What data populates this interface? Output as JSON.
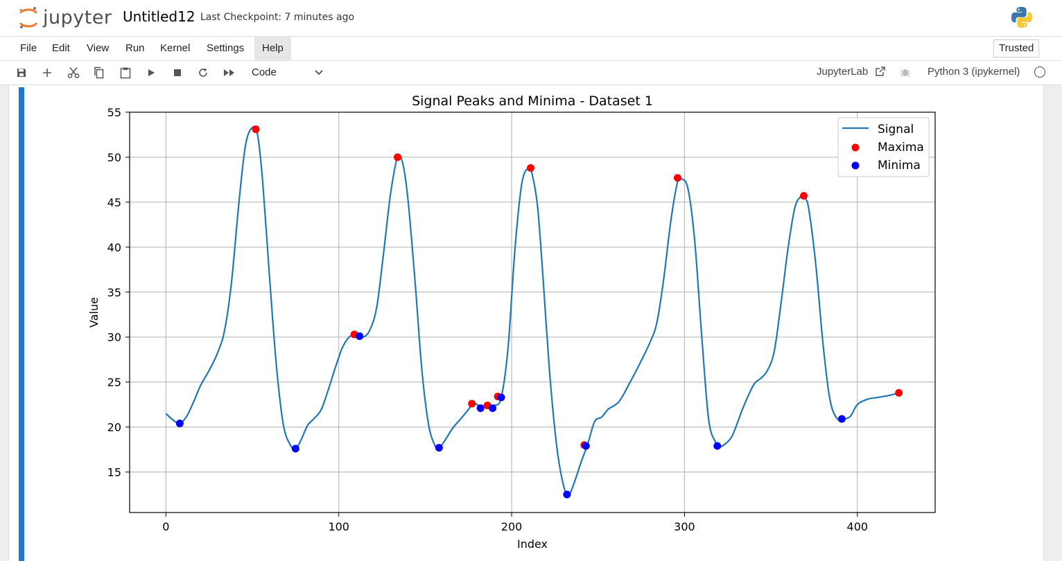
{
  "header": {
    "logo_text": "jupyter",
    "notebook_title": "Untitled12",
    "checkpoint": "Last Checkpoint: 7 minutes ago"
  },
  "menu": {
    "items": [
      "File",
      "Edit",
      "View",
      "Run",
      "Kernel",
      "Settings",
      "Help"
    ],
    "trusted": "Trusted"
  },
  "toolbar": {
    "cell_type": "Code",
    "jupyterlab_link": "JupyterLab",
    "kernel_name": "Python 3 (ipykernel)",
    "icons": [
      "save-icon",
      "add-icon",
      "cut-icon",
      "copy-icon",
      "paste-icon",
      "run-icon",
      "stop-icon",
      "restart-icon",
      "fast-forward-icon"
    ]
  },
  "colors": {
    "cell_bar": "#1e77d3",
    "signal": "#1f77b4",
    "maxima": "#ff0000",
    "minima": "#0000ff"
  },
  "chart_data": {
    "type": "line",
    "title": "Signal Peaks and Minima - Dataset 1",
    "xlabel": "Index",
    "ylabel": "Value",
    "xlim": [
      -21,
      445
    ],
    "ylim": [
      10.5,
      55
    ],
    "xticks": [
      0,
      100,
      200,
      300,
      400
    ],
    "yticks": [
      15,
      20,
      25,
      30,
      35,
      40,
      45,
      50,
      55
    ],
    "grid": true,
    "legend_position": "upper right",
    "series": [
      {
        "name": "Signal",
        "kind": "line",
        "x": [
          0,
          4,
          8,
          12,
          16,
          20,
          25,
          30,
          34,
          38,
          42,
          46,
          50,
          53,
          56,
          60,
          64,
          68,
          72,
          75,
          78,
          82,
          86,
          90,
          94,
          98,
          102,
          106,
          110,
          114,
          118,
          122,
          126,
          130,
          134,
          137,
          140,
          144,
          148,
          152,
          156,
          158,
          162,
          166,
          170,
          174,
          178,
          182,
          186,
          190,
          194,
          198,
          202,
          206,
          210,
          212,
          215,
          218,
          222,
          226,
          230,
          233,
          236,
          240,
          244,
          248,
          252,
          256,
          262,
          268,
          274,
          280,
          284,
          288,
          292,
          296,
          298,
          302,
          306,
          310,
          314,
          318,
          320,
          324,
          328,
          334,
          340,
          344,
          348,
          352,
          356,
          360,
          364,
          368,
          370,
          372,
          376,
          380,
          384,
          388,
          392,
          396,
          400,
          406,
          412,
          418,
          424
        ],
        "y": [
          21.5,
          20.8,
          20.4,
          21.2,
          22.8,
          24.6,
          26.3,
          28.3,
          30.8,
          36.2,
          44.5,
          51.3,
          53.3,
          52.5,
          47.2,
          36.5,
          26.6,
          20.2,
          18.0,
          17.6,
          18.5,
          20.2,
          21.0,
          22.0,
          24.2,
          26.6,
          28.8,
          30.0,
          30.3,
          30.0,
          30.8,
          33.4,
          39.5,
          46.0,
          50.0,
          49.3,
          45.3,
          36.5,
          26.5,
          20.2,
          17.8,
          17.6,
          18.7,
          19.9,
          20.8,
          21.7,
          22.6,
          22.3,
          22.4,
          22.4,
          23.3,
          29.0,
          40.0,
          47.2,
          48.8,
          48.0,
          44.5,
          37.0,
          26.0,
          18.0,
          13.5,
          12.5,
          13.7,
          16.0,
          18.1,
          20.6,
          21.1,
          22.0,
          22.8,
          24.8,
          27.0,
          29.4,
          31.6,
          36.5,
          42.8,
          47.3,
          47.6,
          46.5,
          40.5,
          30.0,
          20.8,
          18.3,
          17.8,
          18.2,
          19.2,
          22.2,
          24.7,
          25.4,
          26.3,
          28.5,
          34.0,
          40.0,
          44.5,
          45.7,
          45.4,
          44.1,
          38.0,
          29.5,
          23.2,
          21.0,
          20.9,
          21.2,
          22.5,
          23.1,
          23.3,
          23.5,
          23.8
        ]
      },
      {
        "name": "Maxima",
        "kind": "scatter",
        "x": [
          52,
          109,
          134,
          177,
          186,
          192,
          211,
          242,
          296,
          369,
          424
        ],
        "y": [
          53.1,
          30.3,
          50.0,
          22.6,
          22.4,
          23.4,
          48.8,
          18.0,
          47.7,
          45.7,
          23.8
        ]
      },
      {
        "name": "Minima",
        "kind": "scatter",
        "x": [
          8,
          75,
          112,
          158,
          182,
          189,
          194,
          232,
          243,
          319,
          391
        ],
        "y": [
          20.4,
          17.6,
          30.1,
          17.7,
          22.1,
          22.1,
          23.3,
          12.5,
          17.9,
          17.9,
          20.9
        ]
      }
    ]
  }
}
